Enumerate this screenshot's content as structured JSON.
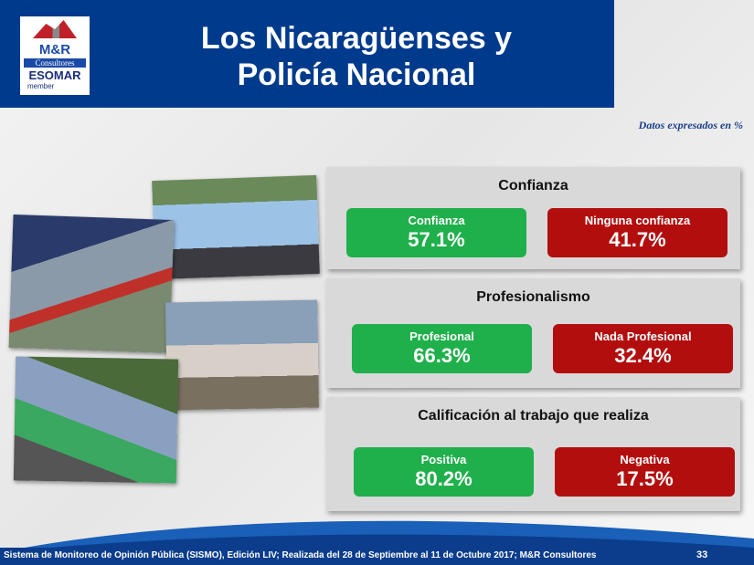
{
  "header": {
    "title_line1": "Los Nicaragüenses y",
    "title_line2": "Policía Nacional",
    "logo": {
      "brand": "M&R",
      "subtitle": "Consultores",
      "association": "ESOMAR",
      "member": "member"
    }
  },
  "note": "Datos expresados en  %",
  "sections": [
    {
      "title": "Confianza",
      "positive": {
        "label": "Confianza",
        "value": "57.1%"
      },
      "negative": {
        "label": "Ninguna confianza",
        "value": "41.7%"
      }
    },
    {
      "title": "Profesionalismo",
      "positive": {
        "label": "Profesional",
        "value": "66.3%"
      },
      "negative": {
        "label": "Nada Profesional",
        "value": "32.4%"
      }
    },
    {
      "title": "Calificación al trabajo que realiza",
      "positive": {
        "label": "Positiva",
        "value": "80.2%"
      },
      "negative": {
        "label": "Negativa",
        "value": "17.5%"
      }
    }
  ],
  "footer": {
    "text": "Sistema de Monitoreo de Opinión Pública (SISMO), Edición LIV; Realizada del 28 de Septiembre al 11 de Octubre 2017; M&R Consultores",
    "page": "33"
  }
}
